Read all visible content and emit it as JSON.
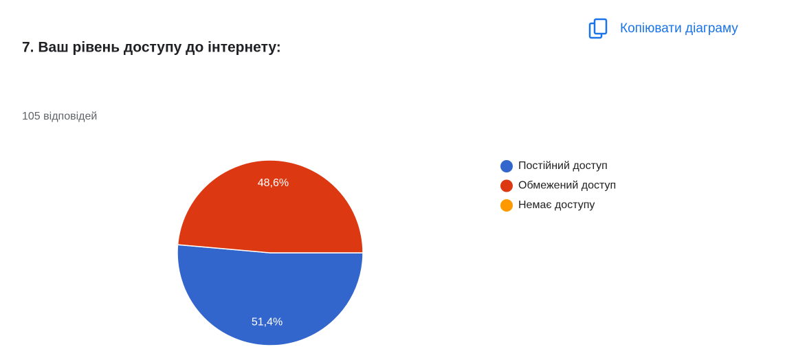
{
  "chart_data": {
    "type": "pie",
    "title": "7. Ваш рівень доступу до інтернету:",
    "subtitle": "105 відповідей",
    "copy_button": "Копіювати діаграму",
    "categories": [
      "Постійний доступ",
      "Обмежений доступ",
      "Немає доступу"
    ],
    "values": [
      51.4,
      48.6,
      0
    ],
    "value_labels": [
      "51,4%",
      "48,6%",
      null
    ],
    "colors": [
      "#3366cc",
      "#dc3912",
      "#ff9900"
    ],
    "legend": "right"
  }
}
